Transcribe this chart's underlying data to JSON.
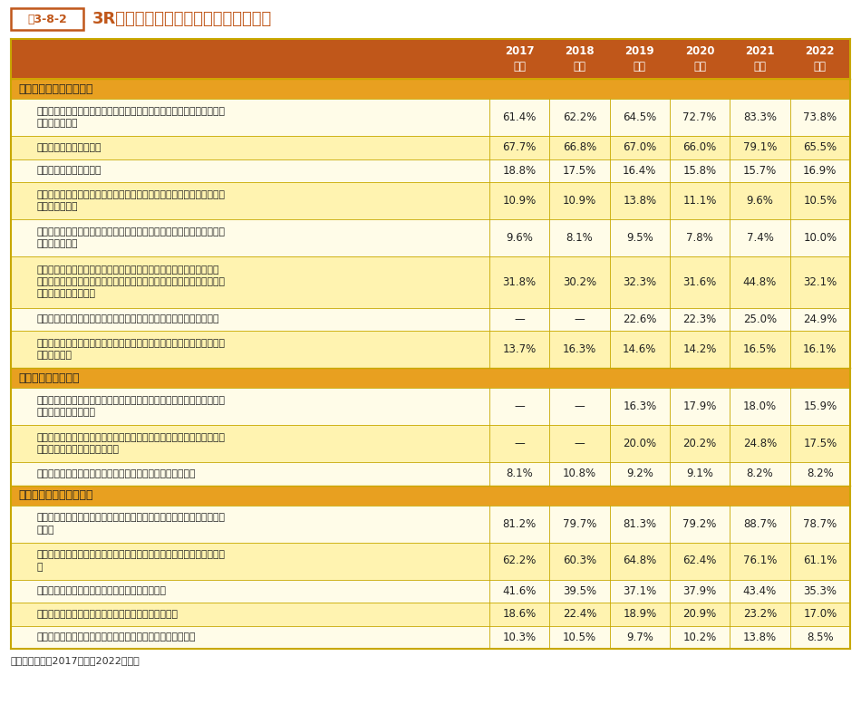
{
  "title_box": "表3-8-2",
  "title_text": "3Rに関する主要な具体的行動例の変化",
  "years": [
    "2017\n年度",
    "2018\n年度",
    "2019\n年度",
    "2020\n年度",
    "2021\n年度",
    "2022\n年度"
  ],
  "header_bg": "#C0571A",
  "header_text_color": "#FFFFFF",
  "section_bg": "#E8A020",
  "row_bg_light": "#FFFCE8",
  "row_bg_mid": "#FFF3B0",
  "border_color": "#C8A800",
  "border_outer": "#B89000",
  "source_text": "資料：環境省（2017年度〜2022年度）",
  "sections": [
    {
      "label": "発生抑制（リデュース）",
      "rows": [
        {
          "text": "レジ袋をもらわないようにしたり（買い物袋を持参する）、簡易包装を\n店に求めている",
          "values": [
            "61.4%",
            "62.2%",
            "64.5%",
            "72.7%",
            "83.3%",
            "73.8%"
          ],
          "nlines": 2
        },
        {
          "text": "詰め替え製品をよく使う",
          "values": [
            "67.7%",
            "66.8%",
            "67.0%",
            "66.0%",
            "79.1%",
            "65.5%"
          ],
          "nlines": 1
        },
        {
          "text": "使い捨て製品を買わない",
          "values": [
            "18.8%",
            "17.5%",
            "16.4%",
            "15.8%",
            "15.7%",
            "16.9%"
          ],
          "nlines": 1
        },
        {
          "text": "無駄な製品をできるだけ買わないよう、レンタル・リースの製品を使う\nようにしている",
          "values": [
            "10.9%",
            "10.9%",
            "13.8%",
            "11.1%",
            "9.6%",
            "10.5%"
          ],
          "nlines": 2
        },
        {
          "text": "簡易包装に取り組んでいたり、使い捨て食器類（割り箸等）を使用して\nいない店を選ぶ",
          "values": [
            "9.6%",
            "8.1%",
            "9.5%",
            "7.8%",
            "7.4%",
            "10.0%"
          ],
          "nlines": 2
        },
        {
          "text": "買い過ぎ、作り過ぎをせず、生ごみを少なくするなどの料理法（エコ\nクッキング）の実践や消費期限切れ等の食品を出さないなど、食品を捨\nてないようにしている",
          "values": [
            "31.8%",
            "30.2%",
            "32.3%",
            "31.6%",
            "44.8%",
            "32.1%"
          ],
          "nlines": 3
        },
        {
          "text": "マイ箸、マイボトルなどの繰り返し利用可能な食器類を携行している",
          "values": [
            "—",
            "—",
            "22.6%",
            "22.3%",
            "25.0%",
            "24.9%"
          ],
          "nlines": 1
        },
        {
          "text": "ペットボトル等の使い捨て型飲料容器や、使い捨て食器類を使わないよ\nうにしている",
          "values": [
            "13.7%",
            "16.3%",
            "14.6%",
            "14.2%",
            "16.5%",
            "16.1%"
          ],
          "nlines": 2
        }
      ]
    },
    {
      "label": "再使用（リユース）",
      "rows": [
        {
          "text": "不用品をインターネットオークション、フリマアプリなどインターネッ\nトを介して売っている",
          "values": [
            "—",
            "—",
            "16.3%",
            "17.9%",
            "18.0%",
            "15.9%"
          ],
          "nlines": 2
        },
        {
          "text": "不用品を捨てるのではなく、中古品を扱う店やバザーやフリーマーケッ\nトなどを活用して手放している",
          "values": [
            "—",
            "—",
            "20.0%",
            "20.2%",
            "24.8%",
            "17.5%"
          ],
          "nlines": 2
        },
        {
          "text": "ビールや牛乳の瓶など再使用可能な容器を使った製品を買う",
          "values": [
            "8.1%",
            "10.8%",
            "9.2%",
            "9.1%",
            "8.2%",
            "8.2%"
          ],
          "nlines": 1
        }
      ]
    },
    {
      "label": "再生利用（リサイクル）",
      "rows": [
        {
          "text": "家庭で出たごみはきちんと種類ごとに分別して、定められた場所に出し\nている",
          "values": [
            "81.2%",
            "79.7%",
            "81.3%",
            "79.2%",
            "88.7%",
            "78.7%"
          ],
          "nlines": 2
        },
        {
          "text": "リサイクルしやすいように、資源ごみとして回収される瓶等は洗ってい\nる",
          "values": [
            "62.2%",
            "60.3%",
            "64.8%",
            "62.4%",
            "76.1%",
            "61.1%"
          ],
          "nlines": 2
        },
        {
          "text": "トレイや牛乳パック等の店頭回収に協力している",
          "values": [
            "41.6%",
            "39.5%",
            "37.1%",
            "37.9%",
            "43.4%",
            "35.3%"
          ],
          "nlines": 1
        },
        {
          "text": "携帯電話等の小型電子機器の店頭回収に協力している",
          "values": [
            "18.6%",
            "22.4%",
            "18.9%",
            "20.9%",
            "23.2%",
            "17.0%"
          ],
          "nlines": 1
        },
        {
          "text": "再生原料で作られたリサイクル製品を積極的に購入している",
          "values": [
            "10.3%",
            "10.5%",
            "9.7%",
            "10.2%",
            "13.8%",
            "8.5%"
          ],
          "nlines": 1
        }
      ]
    }
  ]
}
